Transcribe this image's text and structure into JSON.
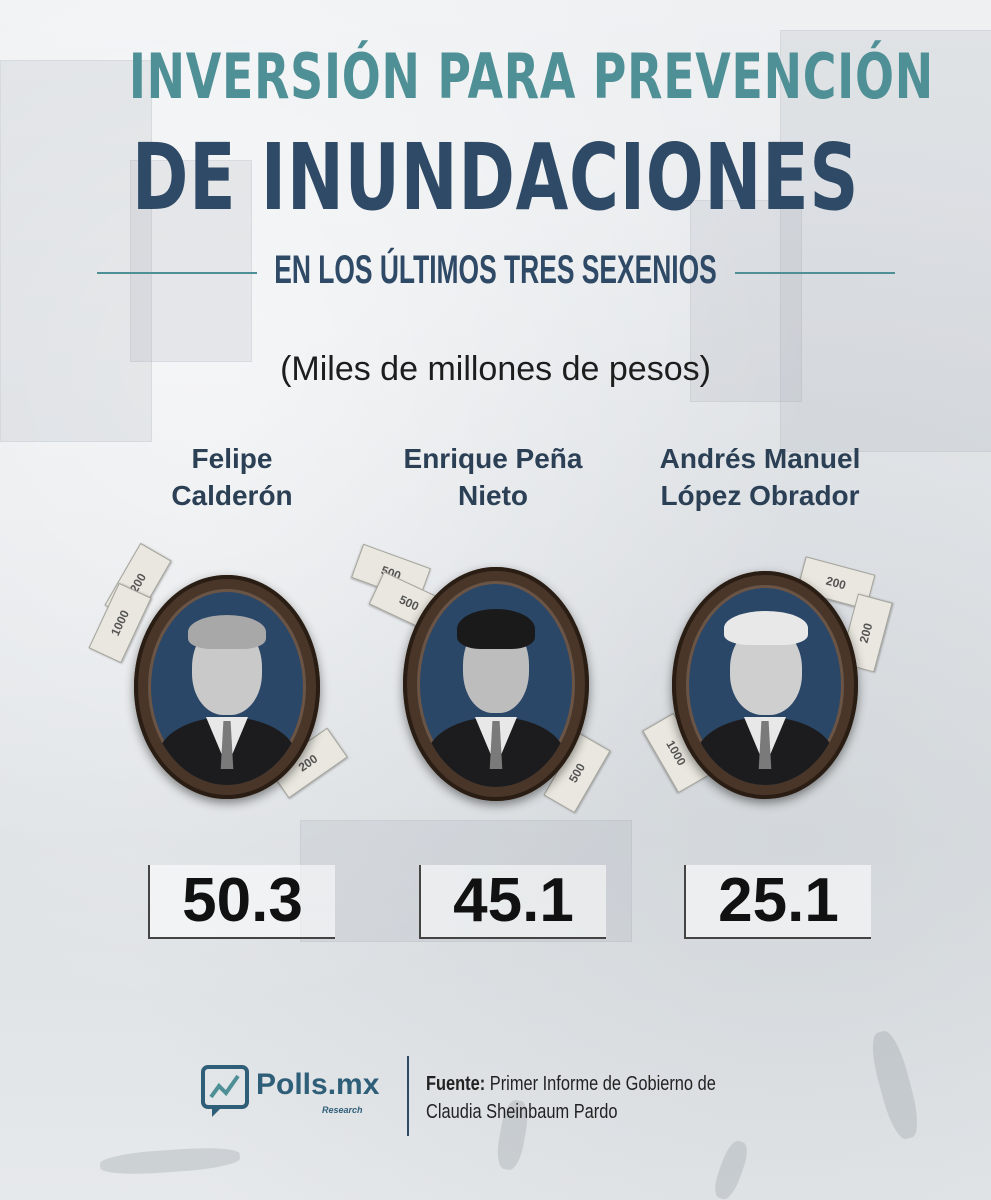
{
  "title_line1": "INVERSIÓN PARA PREVENCIÓN",
  "title_line2": "DE INUNDACIONES",
  "subtitle": "EN LOS ÚLTIMOS TRES SEXENIOS",
  "units": "(Miles de millones de pesos)",
  "chart_data": {
    "type": "table",
    "title": "INVERSIÓN PARA PREVENCIÓN DE INUNDACIONES",
    "subtitle": "EN LOS ÚLTIMOS TRES SEXENIOS",
    "unit": "(Miles de millones de pesos)",
    "categories": [
      "Felipe Calderón",
      "Enrique Peña Nieto",
      "Andrés Manuel López Obrador"
    ],
    "values": [
      50.3,
      45.1,
      25.1
    ],
    "labels": [
      "50.3",
      "45.1",
      "25.1"
    ]
  },
  "people": [
    {
      "name": "Felipe\nCalderón",
      "value": "50.3"
    },
    {
      "name": "Enrique Peña\nNieto",
      "value": "45.1"
    },
    {
      "name": "Andrés Manuel\nLópez Obrador",
      "value": "25.1"
    }
  ],
  "bill_labels": [
    "200",
    "500",
    "1000"
  ],
  "footer": {
    "logo_name": "Polls.mx",
    "logo_tagline": "Research",
    "source_label": "Fuente:",
    "source_text": "Primer Informe de Gobierno de Claudia Sheinbaum Pardo"
  },
  "colors": {
    "title_teal": "#4f8f96",
    "title_navy": "#2f4a66",
    "portrait_bg": "#2b4768"
  }
}
